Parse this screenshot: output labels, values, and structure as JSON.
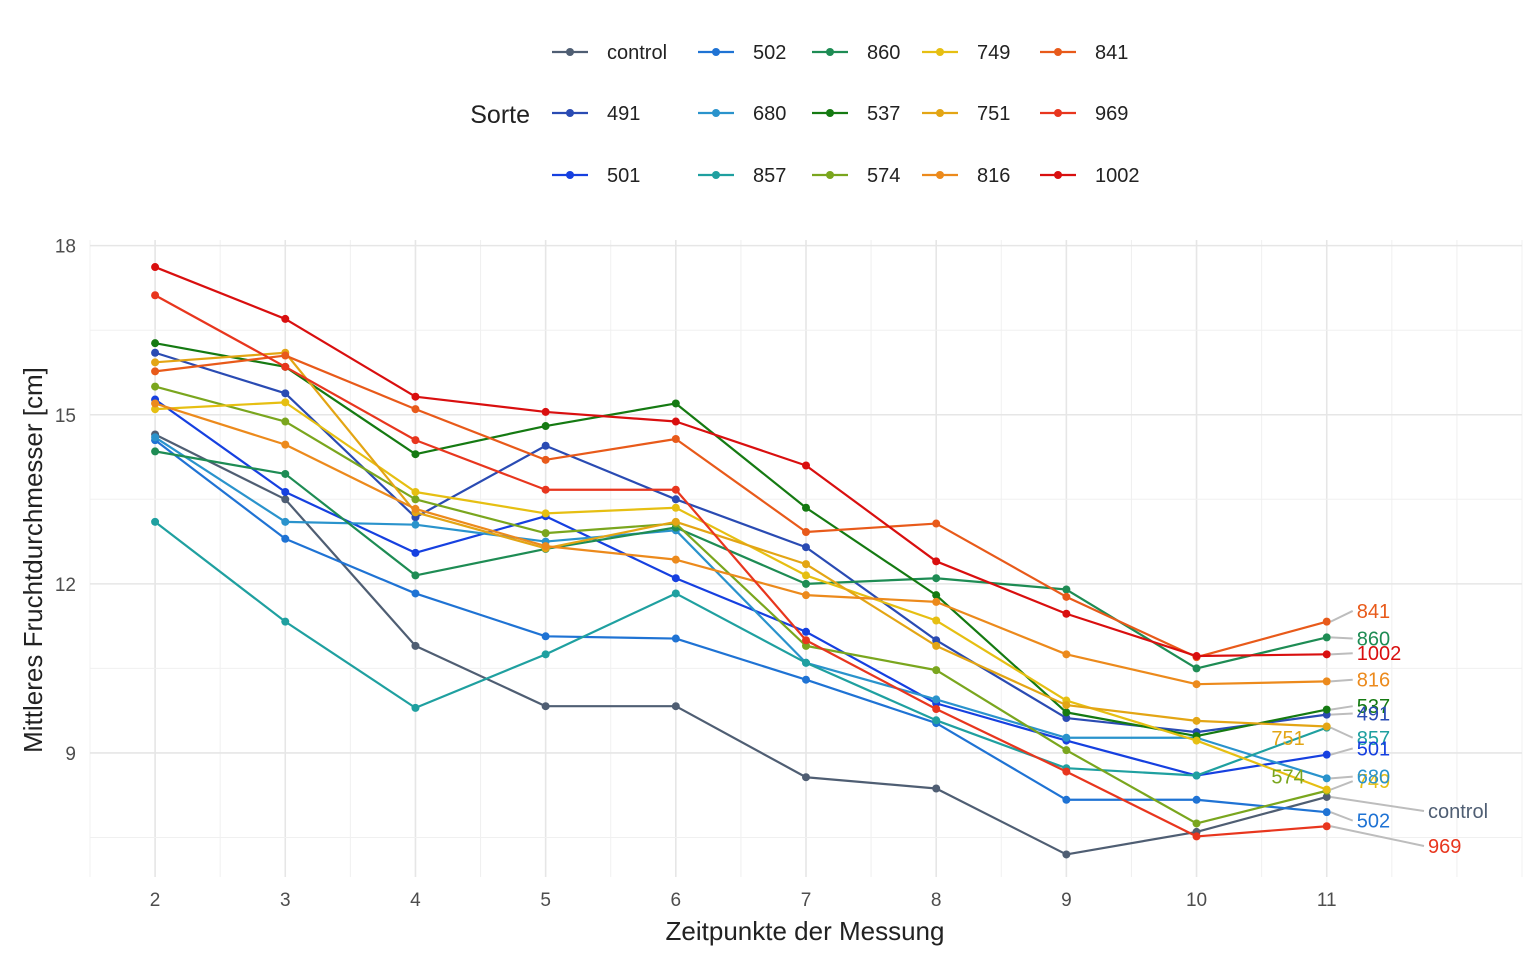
{
  "chart_data": {
    "type": "line",
    "title": "",
    "xlabel": "Zeitpunkte der Messung",
    "ylabel": "Mittleres Fruchtdurchmesser [cm]",
    "legend_title": "Sorte",
    "legend_position": "top",
    "grid": true,
    "x": [
      2,
      3,
      4,
      5,
      6,
      7,
      8,
      9,
      10,
      11
    ],
    "xlim": [
      1.5,
      12.5
    ],
    "ylim": [
      6.8,
      18.1
    ],
    "x_ticks": [
      "2",
      "3",
      "4",
      "5",
      "6",
      "7",
      "8",
      "9",
      "10",
      "11"
    ],
    "y_ticks": [
      "9",
      "12",
      "15",
      "18"
    ],
    "y_tick_values": [
      9,
      12,
      15,
      18
    ],
    "series": [
      {
        "name": "control",
        "color": "#4f5e73",
        "values": [
          14.65,
          13.5,
          10.9,
          9.83,
          9.83,
          8.57,
          8.37,
          7.2,
          7.6,
          8.22
        ]
      },
      {
        "name": "491",
        "color": "#2a4bb3",
        "values": [
          16.1,
          15.38,
          13.18,
          14.45,
          13.5,
          12.65,
          11.0,
          9.62,
          9.37,
          9.68
        ]
      },
      {
        "name": "501",
        "color": "#1640e0",
        "values": [
          15.27,
          13.63,
          12.55,
          13.2,
          12.1,
          11.15,
          9.88,
          9.22,
          8.6,
          8.97
        ]
      },
      {
        "name": "502",
        "color": "#1f73d4",
        "values": [
          14.55,
          12.8,
          11.83,
          11.07,
          11.03,
          10.3,
          9.53,
          8.17,
          8.17,
          7.95
        ]
      },
      {
        "name": "680",
        "color": "#2a93cc",
        "values": [
          14.6,
          13.1,
          13.05,
          12.75,
          12.95,
          10.6,
          9.95,
          9.27,
          9.27,
          8.55
        ]
      },
      {
        "name": "857",
        "color": "#1fa0a0",
        "values": [
          13.1,
          11.33,
          9.8,
          10.75,
          11.83,
          10.6,
          9.58,
          8.73,
          8.6,
          9.45
        ]
      },
      {
        "name": "860",
        "color": "#1e8c54",
        "values": [
          14.35,
          13.95,
          12.15,
          12.62,
          13.0,
          12.0,
          12.1,
          11.9,
          10.5,
          11.05
        ]
      },
      {
        "name": "537",
        "color": "#157a12",
        "values": [
          16.27,
          15.85,
          14.3,
          14.8,
          15.2,
          13.35,
          11.8,
          9.72,
          9.3,
          9.77
        ]
      },
      {
        "name": "574",
        "color": "#7aa61e",
        "values": [
          15.5,
          14.88,
          13.5,
          12.9,
          13.07,
          10.9,
          10.47,
          9.05,
          7.75,
          8.33
        ]
      },
      {
        "name": "749",
        "color": "#e6bf12",
        "values": [
          15.1,
          15.22,
          13.63,
          13.25,
          13.35,
          12.15,
          11.35,
          9.93,
          9.22,
          8.35
        ]
      },
      {
        "name": "751",
        "color": "#e3a514",
        "values": [
          15.93,
          16.1,
          13.27,
          12.63,
          13.1,
          12.35,
          10.9,
          9.85,
          9.57,
          9.47
        ]
      },
      {
        "name": "816",
        "color": "#ec8a1c",
        "values": [
          15.2,
          14.47,
          13.33,
          12.67,
          12.43,
          11.8,
          11.68,
          10.75,
          10.22,
          10.27
        ]
      },
      {
        "name": "841",
        "color": "#e85a1a",
        "values": [
          15.77,
          16.05,
          15.1,
          14.2,
          14.57,
          12.92,
          13.07,
          11.77,
          10.7,
          11.33
        ]
      },
      {
        "name": "969",
        "color": "#e8361e",
        "values": [
          17.12,
          15.85,
          14.55,
          13.67,
          13.67,
          11.0,
          9.78,
          8.67,
          7.52,
          7.7
        ]
      },
      {
        "name": "1002",
        "color": "#d90f0f",
        "values": [
          17.62,
          16.7,
          15.32,
          15.05,
          14.88,
          14.1,
          12.4,
          11.47,
          10.72,
          10.75
        ]
      }
    ],
    "end_labels": [
      {
        "series": "841",
        "y": 11.52
      },
      {
        "series": "860",
        "y": 11.03
      },
      {
        "series": "1002",
        "y": 10.77
      },
      {
        "series": "816",
        "y": 10.3
      },
      {
        "series": "537",
        "y": 9.83
      },
      {
        "series": "491",
        "y": 9.7
      },
      {
        "series": "857",
        "y": 9.27
      },
      {
        "series": "751",
        "y": 9.27,
        "side": "left"
      },
      {
        "series": "501",
        "y": 9.08
      },
      {
        "series": "574",
        "y": 8.58,
        "side": "left"
      },
      {
        "series": "749",
        "y": 8.5
      },
      {
        "series": "680",
        "y": 8.58
      },
      {
        "series": "control",
        "y": 7.97
      },
      {
        "series": "502",
        "y": 7.8
      },
      {
        "series": "969",
        "y": 7.35
      }
    ],
    "legend_layout": [
      [
        "control",
        "502",
        "860",
        "749",
        "841"
      ],
      [
        "491",
        "680",
        "537",
        "751",
        "969"
      ],
      [
        "501",
        "857",
        "574",
        "816",
        "1002"
      ]
    ]
  }
}
